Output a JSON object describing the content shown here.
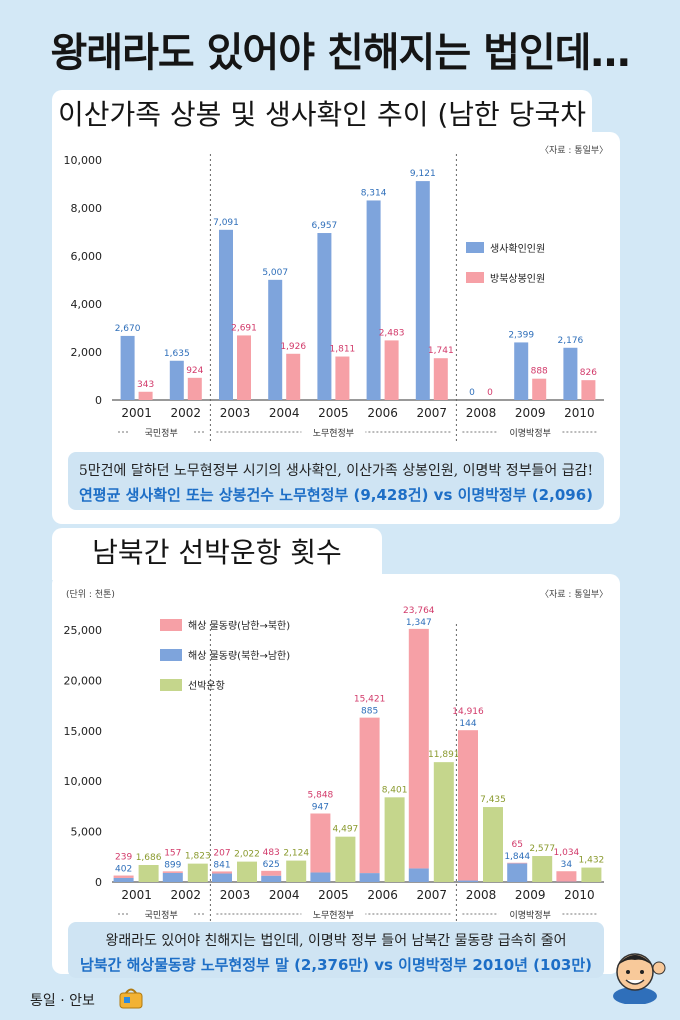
{
  "headline": "왕래라도 있어야 친해지는 법인데…",
  "footer": "통일 · 안보",
  "chart1": {
    "title": "이산가족 상봉 및 생사확인 추이 (남한 당국차원)",
    "source": "〈자료 : 통일부〉",
    "summary_line1": "5만건에 달하던 노무현정부 시기의 생사확인, 이산가족 상봉인원, 이명박 정부들어 급감!",
    "summary_line2": "연평균 생사확인 또는 상봉건수 노무현정부 (9,428건) vs 이명박정부 (2,096)",
    "periods": [
      {
        "label": "국민정부",
        "years": [
          "2001",
          "2002"
        ]
      },
      {
        "label": "노무현정부",
        "years": [
          "2003",
          "2004",
          "2005",
          "2006",
          "2007"
        ]
      },
      {
        "label": "이명박정부",
        "years": [
          "2008",
          "2009",
          "2010"
        ]
      }
    ],
    "colors": {
      "survival": "#7ea4dc",
      "reunion": "#f6a0a6",
      "survival_label": "#2f6fba",
      "reunion_label": "#d23a6a"
    },
    "legend": [
      "생사확인인원",
      "방북상봉인원"
    ]
  },
  "chart2": {
    "title": "남북간 선박운항 횟수",
    "source": "〈자료 : 통일부〉",
    "unit": "(단위 : 천톤)",
    "summary_line1": "왕래라도 있어야 친해지는 법인데, 이명박 정부 들어 남북간 물동량 급속히 줄어",
    "summary_line2": "남북간 해상물동량 노무현정부 말 (2,376만) vs 이명박정부 2010년 (103만)",
    "periods": [
      {
        "label": "국민정부",
        "years": [
          "2001",
          "2002"
        ]
      },
      {
        "label": "노무현정부",
        "years": [
          "2003",
          "2004",
          "2005",
          "2006",
          "2007"
        ]
      },
      {
        "label": "이명박정부",
        "years": [
          "2008",
          "2009",
          "2010"
        ]
      }
    ],
    "colors": {
      "s2n": "#f6a0a6",
      "n2s": "#7ea4dc",
      "ships": "#c5d68c",
      "s2n_label": "#d23a6a",
      "n2s_label": "#2f6fba",
      "ships_label": "#8a9a2e"
    },
    "legend": [
      "해상 물동량(남한→북한)",
      "해상 물동량(북한→남한)",
      "선박운항"
    ]
  },
  "chart_data": [
    {
      "type": "bar",
      "title": "이산가족 상봉 및 생사확인 추이 (남한 당국차원)",
      "categories": [
        "2001",
        "2002",
        "2003",
        "2004",
        "2005",
        "2006",
        "2007",
        "2008",
        "2009",
        "2010"
      ],
      "series": [
        {
          "name": "생사확인인원",
          "values": [
            2670,
            1635,
            7091,
            5007,
            6957,
            8314,
            9121,
            0,
            2399,
            2176
          ]
        },
        {
          "name": "방북상봉인원",
          "values": [
            343,
            924,
            2691,
            1926,
            1811,
            2483,
            1741,
            0,
            888,
            826
          ]
        }
      ],
      "value_labels": [
        [
          "2,670",
          "1,635",
          "7,091",
          "5,007",
          "6,957",
          "8,314",
          "9,121",
          "0",
          "2,399",
          "2,176"
        ],
        [
          "343",
          "924",
          "2,691",
          "1,926",
          "1,811",
          "2,483",
          "1,741",
          "0",
          "888",
          "826"
        ]
      ],
      "yticks": [
        "10,000",
        "8,000",
        "6,000",
        "4,000",
        "2,000",
        "0"
      ],
      "ylim": [
        0,
        10000
      ]
    },
    {
      "type": "bar",
      "title": "남북간 선박운항 횟수",
      "categories": [
        "2001",
        "2002",
        "2003",
        "2004",
        "2005",
        "2006",
        "2007",
        "2008",
        "2009",
        "2010"
      ],
      "series": [
        {
          "name": "해상 물동량(남한→북한)",
          "values": [
            239,
            157,
            207,
            483,
            5848,
            15421,
            23764,
            14916,
            65,
            1034
          ]
        },
        {
          "name": "해상 물동량(북한→남한)",
          "values": [
            402,
            899,
            841,
            625,
            947,
            885,
            1347,
            144,
            1844,
            34
          ]
        },
        {
          "name": "선박운항",
          "values": [
            1686,
            1823,
            2022,
            2124,
            4497,
            8401,
            11891,
            7435,
            2577,
            1432
          ]
        }
      ],
      "value_labels": [
        [
          "239",
          "157",
          "207",
          "483",
          "5,848",
          "15,421",
          "23,764",
          "14,916",
          "65",
          "1,034"
        ],
        [
          "402",
          "899",
          "841",
          "625",
          "947",
          "885",
          "1,347",
          "144",
          "1,844",
          "34"
        ],
        [
          "1,686",
          "1,823",
          "2,022",
          "2,124",
          "4,497",
          "8,401",
          "11,891",
          "7,435",
          "2,577",
          "1,432"
        ]
      ],
      "yticks": [
        "25,000",
        "20,000",
        "15,000",
        "10,000",
        "5,000",
        "0"
      ],
      "ylim": [
        0,
        25000
      ]
    }
  ]
}
